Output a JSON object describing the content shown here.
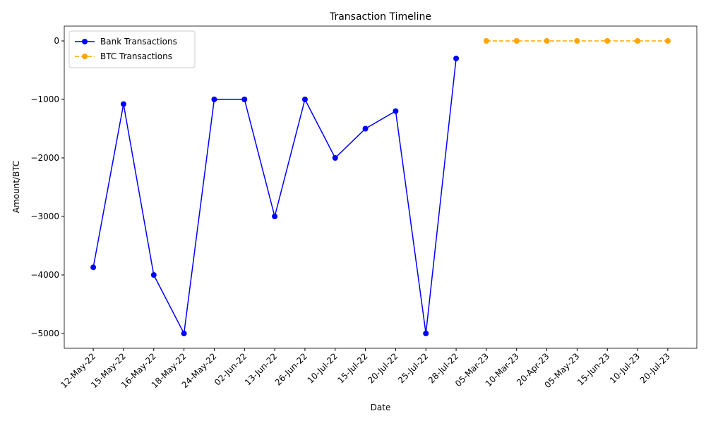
{
  "chart_data": {
    "type": "line",
    "title": "Transaction Timeline",
    "x_label": "Date",
    "y_label": "Amount/BTC",
    "categories": [
      "12-May-22",
      "15-May-22",
      "16-May-22",
      "18-May-22",
      "24-May-22",
      "02-Jun-22",
      "13-Jun-22",
      "26-Jun-22",
      "10-Jul-22",
      "15-Jul-22",
      "20-Jul-22",
      "25-Jul-22",
      "28-Jul-22",
      "05-Mar-23",
      "10-Mar-23",
      "20-Apr-23",
      "05-May-23",
      "15-Jun-23",
      "10-Jul-23",
      "20-Jul-23"
    ],
    "series": [
      {
        "name": "Bank Transactions",
        "color": "#0000ff",
        "linestyle": "solid",
        "values": [
          -3870,
          -1080,
          -4000,
          -5000,
          -1000,
          -1000,
          -3000,
          -1000,
          -2000,
          -1500,
          -1200,
          -5000,
          -300,
          null,
          null,
          null,
          null,
          null,
          null,
          null
        ]
      },
      {
        "name": "BTC Transactions",
        "color": "#ffa500",
        "linestyle": "dashed",
        "values": [
          null,
          null,
          null,
          null,
          null,
          null,
          null,
          null,
          null,
          null,
          null,
          null,
          null,
          0,
          0,
          0,
          0,
          0,
          0,
          0
        ]
      }
    ],
    "ylim": [
      -5253,
      253
    ],
    "yticks": [
      {
        "value": -5000,
        "label": "−5000"
      },
      {
        "value": -4000,
        "label": "−4000"
      },
      {
        "value": -3000,
        "label": "−3000"
      },
      {
        "value": -2000,
        "label": "−2000"
      },
      {
        "value": -1000,
        "label": "−1000"
      },
      0
    ],
    "legend": "upper left",
    "grid": false
  }
}
